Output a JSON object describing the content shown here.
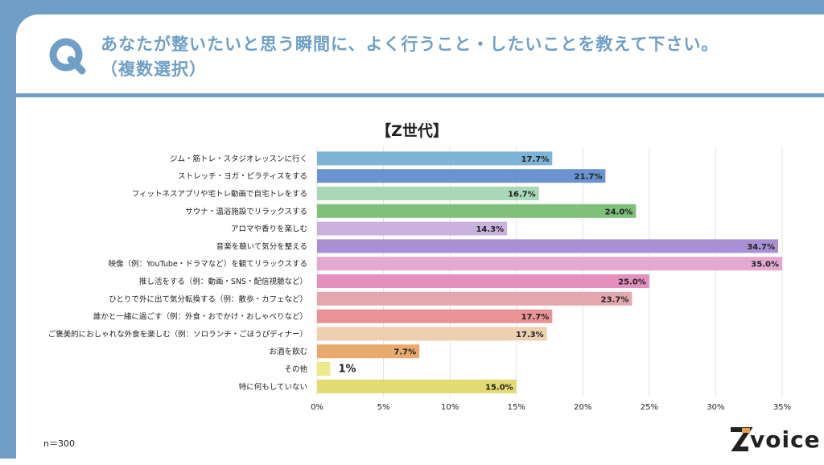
{
  "question": {
    "line1": "あなたが整いたいと思う瞬間に、よく行うこと・したいことを教えて下さい。",
    "line2": "（複数選択）"
  },
  "chart_data": {
    "type": "bar",
    "orientation": "horizontal",
    "title": "【Z世代】",
    "categories": [
      "ジム・筋トレ・スタジオレッスンに行く",
      "ストレッチ・ヨガ・ピラティスをする",
      "フィットネスアプリや宅トレ動画で自宅トレをする",
      "サウナ・温浴施設でリラックスする",
      "アロマや香りを楽しむ",
      "音楽を聴いて気分を整える",
      "映像（例：YouTube・ドラマなど）を観てリラックスする",
      "推し活をする（例：動画・SNS・配信視聴など）",
      "ひとりで外に出て気分転換する（例：散歩・カフェなど）",
      "誰かと一緒に過ごす（例：外食・おでかけ・おしゃべりなど）",
      "ご褒美的におしゃれな外食を楽しむ（例：ソロランチ・ごほうびディナー）",
      "お酒を飲む",
      "その他",
      "特に何もしていない"
    ],
    "values": [
      17.7,
      21.7,
      16.7,
      24.0,
      14.3,
      34.7,
      35.0,
      25.0,
      23.7,
      17.7,
      17.3,
      7.7,
      1,
      15.0
    ],
    "value_labels": [
      "17.7%",
      "21.7%",
      "16.7%",
      "24.0%",
      "14.3%",
      "34.7%",
      "35.0%",
      "25.0%",
      "23.7%",
      "17.7%",
      "17.3%",
      "7.7%",
      "1%",
      "15.0%"
    ],
    "colors": [
      "#7fb3d5",
      "#6b93cf",
      "#a9d8b8",
      "#7fc07a",
      "#c9b3de",
      "#a98fd4",
      "#e3a9d0",
      "#e58fbe",
      "#e3a7ae",
      "#e99396",
      "#ecd0b0",
      "#e8aa6c",
      "#ecea8a",
      "#e3da72"
    ],
    "xlim": [
      0,
      35
    ],
    "x_ticks": [
      0,
      5,
      10,
      15,
      20,
      25,
      30,
      35
    ],
    "x_tick_labels": [
      "0%",
      "5%",
      "10%",
      "15%",
      "20%",
      "25%",
      "30%",
      "35%"
    ],
    "grid": true
  },
  "footer": {
    "sample": "n＝300",
    "logo_text": "voice"
  }
}
